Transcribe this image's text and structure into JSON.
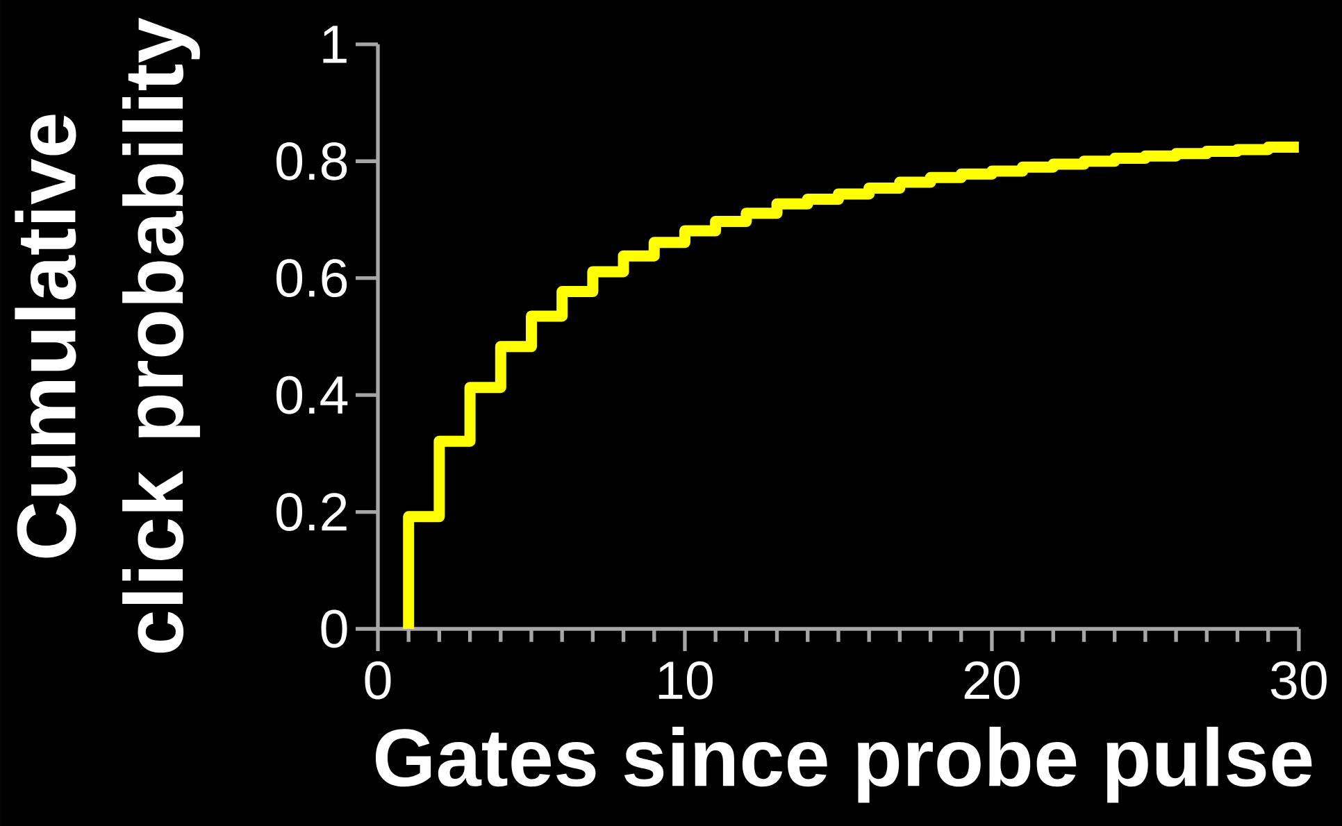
{
  "chart_data": {
    "type": "step",
    "xlabel": "Gates since probe pulse",
    "ylabel": "Cumulative click probability",
    "x": [
      1,
      2,
      3,
      4,
      5,
      6,
      7,
      8,
      9,
      10,
      11,
      12,
      13,
      14,
      15,
      16,
      17,
      18,
      19,
      20,
      21,
      22,
      23,
      24,
      25,
      26,
      27,
      28,
      29,
      30
    ],
    "series": [
      {
        "color": "#ffff00",
        "values": [
          0,
          0.192,
          0.321,
          0.413,
          0.483,
          0.535,
          0.577,
          0.611,
          0.638,
          0.661,
          0.681,
          0.697,
          0.711,
          0.727,
          0.735,
          0.744,
          0.754,
          0.764,
          0.772,
          0.778,
          0.783,
          0.79,
          0.795,
          0.8,
          0.805,
          0.809,
          0.813,
          0.817,
          0.82,
          0.824
        ]
      }
    ],
    "xlim": [
      0,
      30
    ],
    "xticks": [
      0,
      10,
      20,
      30
    ],
    "ylim": [
      0,
      1
    ],
    "yticks": [
      0,
      0.2,
      0.4,
      0.6,
      0.8,
      1
    ]
  }
}
